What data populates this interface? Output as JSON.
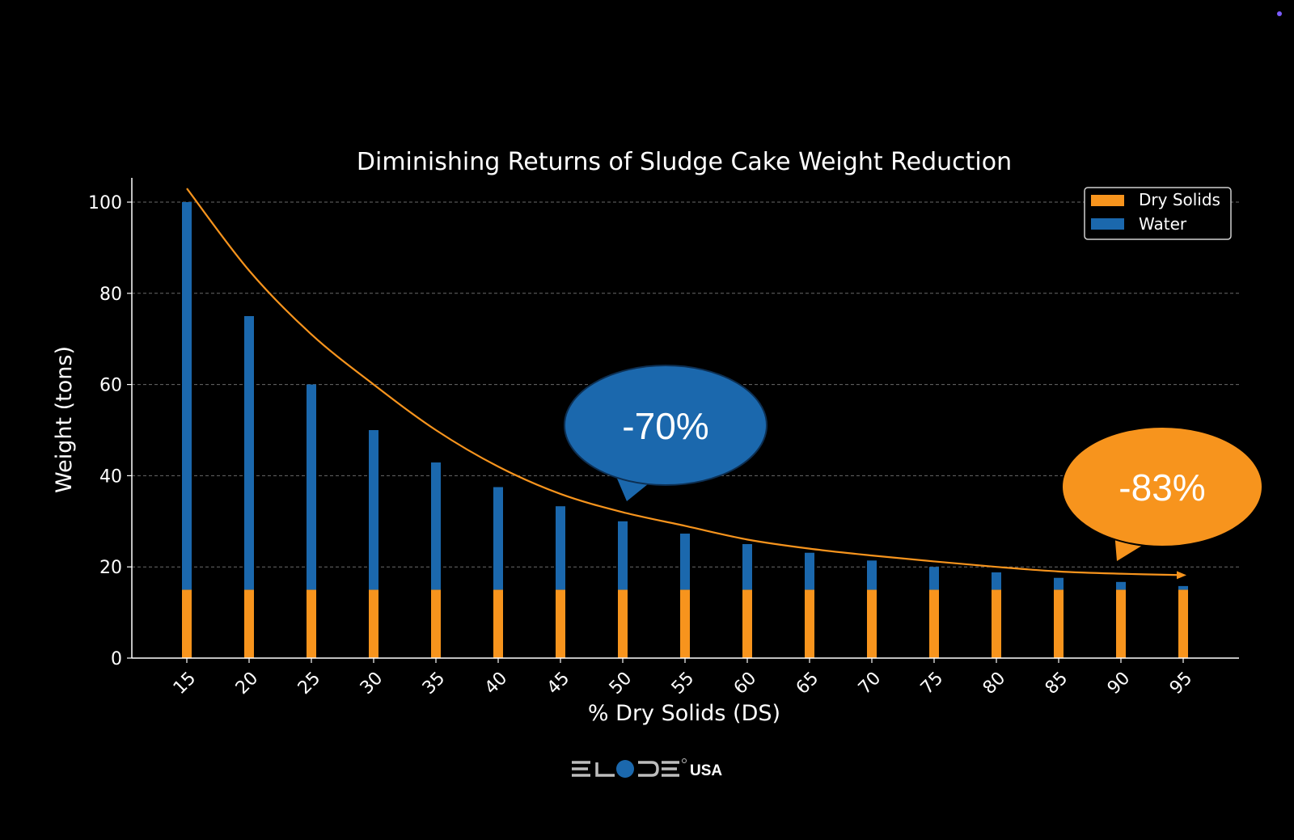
{
  "colors": {
    "background": "#000000",
    "dry_solids": "#f7941d",
    "water": "#1b68ad",
    "curve": "#f7941d",
    "grid": "#6a6a6a",
    "axis": "#ffffff",
    "bubble_blue": "#1b68ad",
    "bubble_orange": "#f7941d",
    "accent_dot": "#7b5cff"
  },
  "chart_data": {
    "type": "bar",
    "stacked": true,
    "title": "Diminishing Returns of Sludge Cake Weight Reduction",
    "xlabel": "% Dry Solids (DS)",
    "ylabel": "Weight (tons)",
    "categories": [
      "15",
      "20",
      "25",
      "30",
      "35",
      "40",
      "45",
      "50",
      "55",
      "60",
      "65",
      "70",
      "75",
      "80",
      "85",
      "90",
      "95"
    ],
    "x_values": [
      15,
      20,
      25,
      30,
      35,
      40,
      45,
      50,
      55,
      60,
      65,
      70,
      75,
      80,
      85,
      90,
      95
    ],
    "series": [
      {
        "name": "Dry Solids",
        "values": [
          15,
          15,
          15,
          15,
          15,
          15,
          15,
          15,
          15,
          15,
          15,
          15,
          15,
          15,
          15,
          15,
          15
        ]
      },
      {
        "name": "Water",
        "values": [
          85,
          60,
          45,
          35,
          27.9,
          22.5,
          18.3,
          15,
          12.3,
          10,
          8.1,
          6.4,
          5,
          3.8,
          2.6,
          1.7,
          0.8
        ]
      }
    ],
    "totals": [
      100,
      75,
      60,
      50,
      42.9,
      37.5,
      33.3,
      30,
      27.3,
      25,
      23.1,
      21.4,
      20,
      18.8,
      17.6,
      16.7,
      15.8
    ],
    "trend_curve": {
      "x": [
        15,
        20,
        25,
        30,
        35,
        40,
        45,
        50,
        55,
        60,
        65,
        70,
        75,
        80,
        85,
        90,
        95
      ],
      "y": [
        103,
        85,
        71,
        60,
        50,
        42,
        36,
        32,
        29,
        26,
        24,
        22.5,
        21.2,
        20,
        19,
        18.5,
        18.2
      ],
      "arrow_end": true
    },
    "yticks": [
      0,
      20,
      40,
      60,
      80,
      100
    ],
    "ylim": [
      0,
      105
    ],
    "grid": true,
    "legend": {
      "placement": "top-right",
      "entries": [
        "Dry Solids",
        "Water"
      ]
    },
    "annotations": [
      {
        "text": "-70%",
        "style": "speech-bubble",
        "color": "blue",
        "near_x": 50
      },
      {
        "text": "-83%",
        "style": "speech-bubble",
        "color": "orange",
        "near_x": 95
      }
    ]
  },
  "logo": {
    "brand": "ELODE",
    "suffix": "USA"
  }
}
